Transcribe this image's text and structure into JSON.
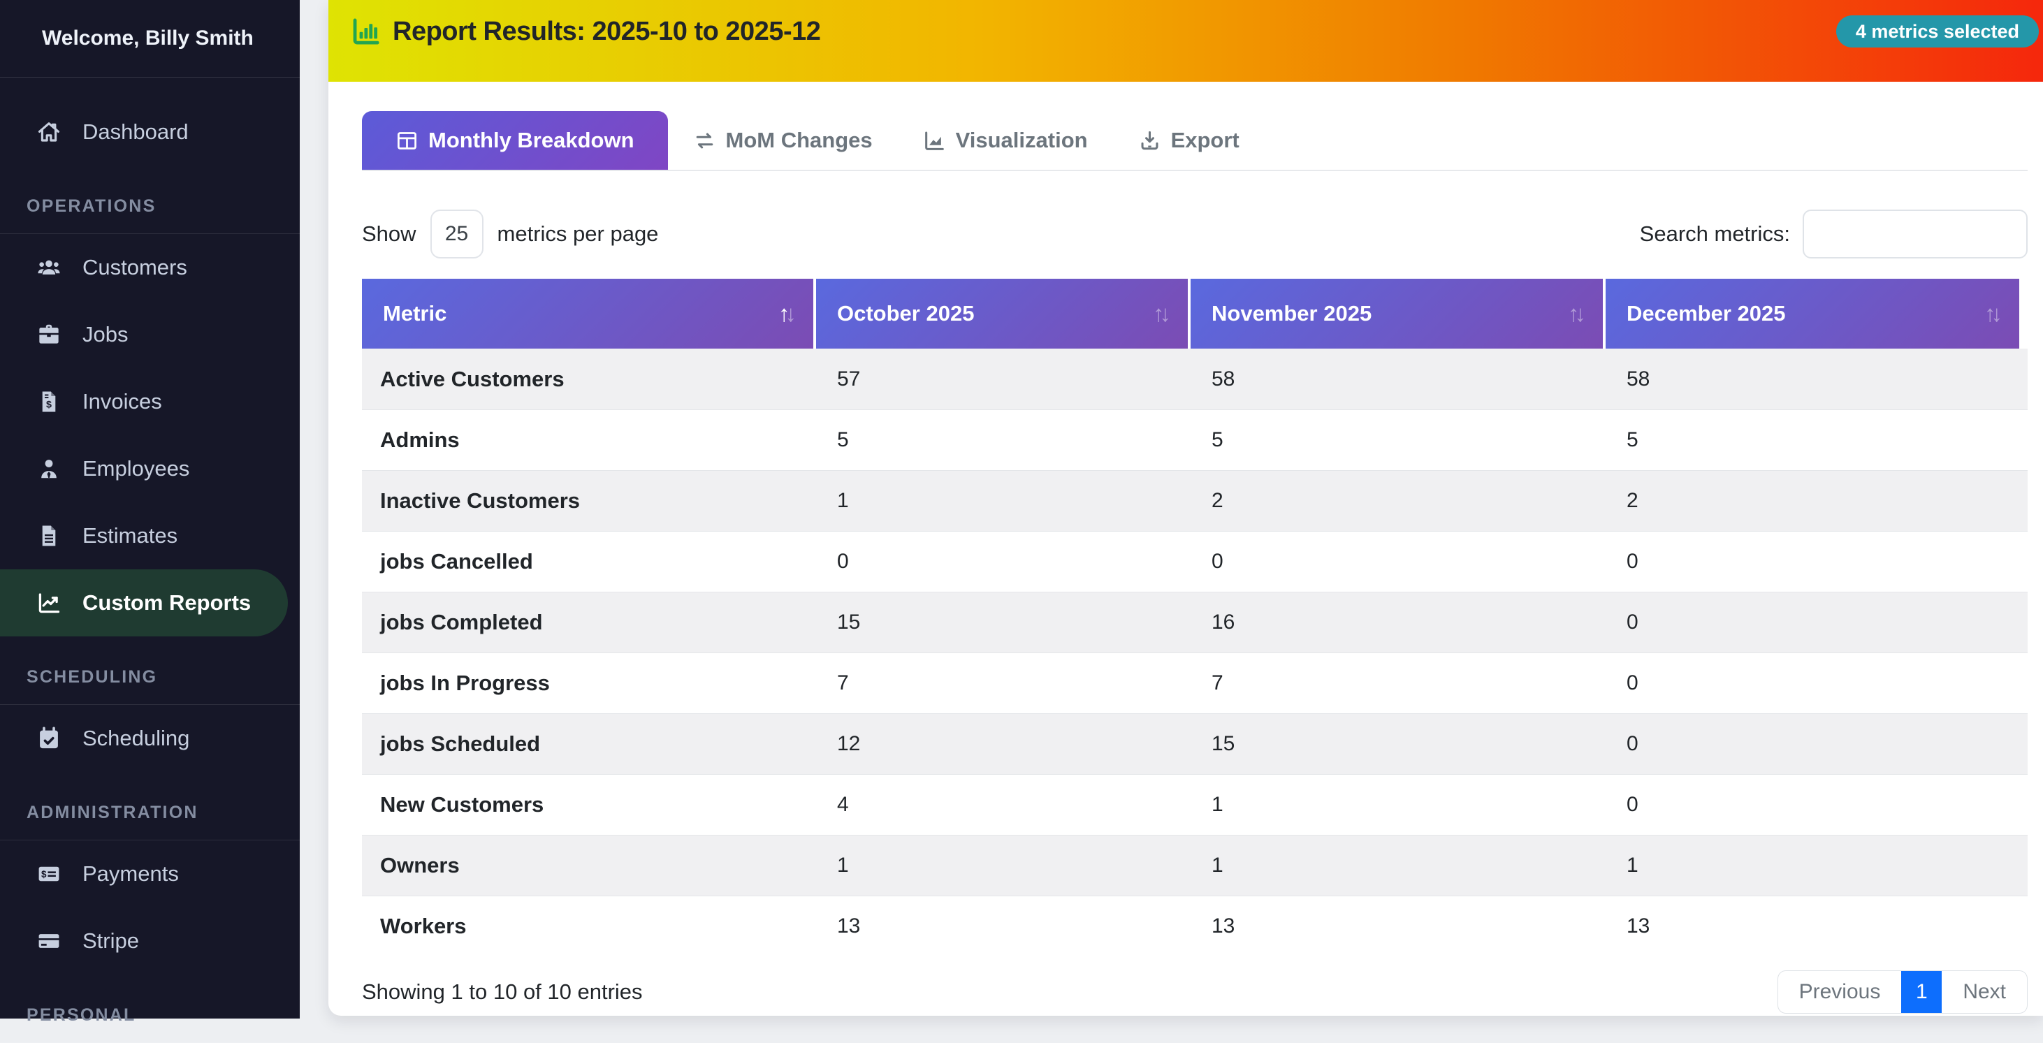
{
  "sidebar": {
    "welcome": "Welcome, Billy Smith",
    "sections": [
      {
        "label": "",
        "items": [
          {
            "label": "Dashboard",
            "icon": "home-icon"
          }
        ]
      },
      {
        "label": "OPERATIONS",
        "items": [
          {
            "label": "Customers",
            "icon": "users-icon"
          },
          {
            "label": "Jobs",
            "icon": "briefcase-icon"
          },
          {
            "label": "Invoices",
            "icon": "invoice-icon"
          },
          {
            "label": "Employees",
            "icon": "employee-icon"
          },
          {
            "label": "Estimates",
            "icon": "document-icon"
          },
          {
            "label": "Custom Reports",
            "icon": "chart-line-icon",
            "active": true
          }
        ]
      },
      {
        "label": "SCHEDULING",
        "items": [
          {
            "label": "Scheduling",
            "icon": "calendar-check-icon"
          }
        ]
      },
      {
        "label": "ADMINISTRATION",
        "items": [
          {
            "label": "Payments",
            "icon": "money-check-icon"
          },
          {
            "label": "Stripe",
            "icon": "credit-card-icon"
          }
        ]
      },
      {
        "label": "PERSONAL",
        "items": []
      }
    ]
  },
  "header": {
    "title": "Report Results: 2025-10 to 2025-12",
    "title_icon": "bar-chart-icon",
    "badge": "4 metrics selected"
  },
  "tabs": [
    {
      "label": "Monthly Breakdown",
      "icon": "table-grid-icon",
      "active": true
    },
    {
      "label": "MoM Changes",
      "icon": "swap-arrows-icon",
      "active": false
    },
    {
      "label": "Visualization",
      "icon": "area-chart-icon",
      "active": false
    },
    {
      "label": "Export",
      "icon": "download-icon",
      "active": false
    }
  ],
  "controls": {
    "show_label": "Show",
    "per_page_value": "25",
    "per_page_suffix": "metrics per page",
    "search_label": "Search metrics:",
    "search_value": "",
    "search_placeholder": ""
  },
  "table": {
    "columns": [
      {
        "label": "Metric",
        "sort": "asc"
      },
      {
        "label": "October 2025",
        "sort": "none"
      },
      {
        "label": "November 2025",
        "sort": "none"
      },
      {
        "label": "December 2025",
        "sort": "none"
      }
    ],
    "rows": [
      {
        "metric": "Active Customers",
        "values": [
          "57",
          "58",
          "58"
        ]
      },
      {
        "metric": "Admins",
        "values": [
          "5",
          "5",
          "5"
        ]
      },
      {
        "metric": "Inactive Customers",
        "values": [
          "1",
          "2",
          "2"
        ]
      },
      {
        "metric": "jobs Cancelled",
        "values": [
          "0",
          "0",
          "0"
        ]
      },
      {
        "metric": "jobs Completed",
        "values": [
          "15",
          "16",
          "0"
        ]
      },
      {
        "metric": "jobs In Progress",
        "values": [
          "7",
          "7",
          "0"
        ]
      },
      {
        "metric": "jobs Scheduled",
        "values": [
          "12",
          "15",
          "0"
        ]
      },
      {
        "metric": "New Customers",
        "values": [
          "4",
          "1",
          "0"
        ]
      },
      {
        "metric": "Owners",
        "values": [
          "1",
          "1",
          "1"
        ]
      },
      {
        "metric": "Workers",
        "values": [
          "13",
          "13",
          "13"
        ]
      }
    ]
  },
  "footer": {
    "summary": "Showing 1 to 10 of 10 entries",
    "pagination": {
      "previous": "Previous",
      "pages": [
        "1"
      ],
      "active": "1",
      "next": "Next"
    }
  },
  "colors": {
    "sidebar_bg": "#161728",
    "sidebar_active_bg": "#1f3b31",
    "header_gradient": [
      "#dfe303",
      "#f2b500",
      "#f07a00",
      "#f5270c"
    ],
    "badge_bg": "#2497a9",
    "tab_gradient": [
      "#5c5bd8",
      "#7f46c4"
    ],
    "table_header_gradient": [
      "#5a69de",
      "#7b4cb4"
    ],
    "page_active_bg": "#0d6efd",
    "title_icon_green": "#22a551"
  }
}
